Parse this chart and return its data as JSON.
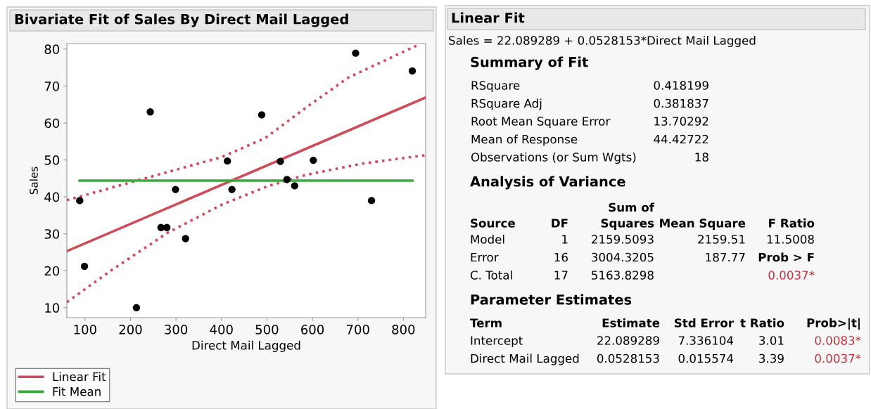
{
  "chart_data": [
    {
      "type": "scatter",
      "title": "Bivariate Fit of Sales By Direct Mail Lagged",
      "xlabel": "Direct Mail Lagged",
      "ylabel": "Sales",
      "xlim": [
        60,
        849
      ],
      "ylim": [
        7.3,
        81.5
      ],
      "xticks": [
        100,
        200,
        300,
        400,
        500,
        600,
        700,
        800
      ],
      "yticks": [
        10,
        20,
        30,
        40,
        50,
        60,
        70,
        80
      ],
      "grid": false,
      "legend": "bottom left",
      "series": [
        {
          "color": "#000000",
          "marker": "circle",
          "x": [
            88.4,
            98.8,
            213,
            243.5,
            267,
            280,
            299,
            321,
            413,
            423,
            488.5,
            529.5,
            544,
            561,
            602,
            695,
            730,
            819.6
          ],
          "values": [
            39.0,
            21.2,
            10.0,
            63.0,
            31.7,
            31.7,
            42.0,
            28.7,
            49.7,
            42.0,
            62.2,
            49.6,
            44.7,
            43.0,
            49.9,
            78.9,
            39.0,
            74.1
          ]
        },
        {
          "type": "line",
          "name": "Linear Fit",
          "color": "#d04a5a",
          "line_style": "solid",
          "x": [
            60,
            849
          ],
          "values": [
            25.3,
            66.9
          ]
        },
        {
          "type": "line",
          "color": "#d04a5a",
          "line_style": "dotted",
          "x": [
            60,
            202.6,
            401,
            496,
            587.5,
            679,
            830
          ],
          "values": [
            39.1,
            44.0,
            50.8,
            55.9,
            64.3,
            72.3,
            81.0
          ]
        },
        {
          "type": "line",
          "color": "#d04a5a",
          "line_style": "dotted",
          "x": [
            60,
            160,
            282,
            401,
            502,
            587.5,
            709.6,
            849
          ],
          "values": [
            11.5,
            20.3,
            30.3,
            37.9,
            42.9,
            46.0,
            49.0,
            51.3
          ]
        },
        {
          "type": "line",
          "name": "Fit Mean",
          "color": "#3aa83a",
          "line_style": "solid",
          "x": [
            88,
            820
          ],
          "values": [
            44.4,
            44.4
          ]
        }
      ]
    },
    {
      "type": "other",
      "title": "Linear Fit",
      "annotations": [
        "Sales = 22.089289 + 0.0528153*Direct Mail Lagged",
        "Summary of Fit",
        "RSquare",
        "0.418199",
        "RSquare Adj",
        "0.381837",
        "Root Mean Square Error",
        "13.70292",
        "Mean of Response",
        "44.42722",
        "Observations (or Sum Wgts)",
        "18",
        "Analysis of Variance",
        "Source",
        "DF",
        "Sum of\nSquares",
        "Mean Square",
        "F Ratio",
        "Model",
        "1",
        "2159.5093",
        "2159.51",
        "11.5008",
        "Error",
        "16",
        "3004.3205",
        "187.77",
        "Prob > F",
        "C. Total",
        "17",
        "5163.8298",
        "0.0037*",
        "Parameter Estimates",
        "Term",
        "Estimate",
        "Std Error",
        "t Ratio",
        "Prob>|t|",
        "Intercept",
        "22.089289",
        "7.336104",
        "3.01",
        "0.0083*",
        "Direct Mail Lagged",
        "0.0528153",
        "0.015574",
        "3.39",
        "0.0037*"
      ]
    }
  ]
}
